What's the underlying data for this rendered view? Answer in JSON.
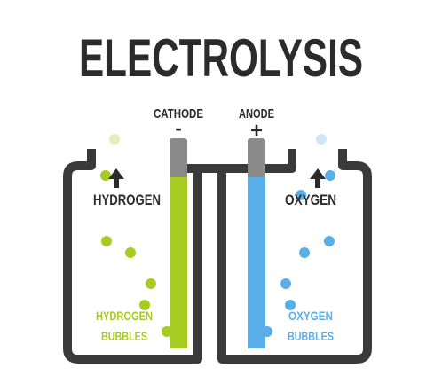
{
  "title": "ELECTROLYSIS",
  "labels": {
    "cathode": "CATHODE",
    "anode": "ANODE",
    "cathode_sign": "-",
    "anode_sign": "+",
    "hydrogen_gas": "HYDROGEN",
    "oxygen_gas": "OXYGEN",
    "hydrogen_bubbles_line1": "HYDROGEN",
    "hydrogen_bubbles_line2": "BUBBLES",
    "oxygen_bubbles_line1": "OXYGEN",
    "oxygen_bubbles_line2": "BUBBLES"
  },
  "colors": {
    "background": "#ffffff",
    "text": "#2b2b2b",
    "container": "#3a3a3a",
    "electrode_cap": "#8a8a8a",
    "cathode": "#a6cc1f",
    "anode": "#5aaee8",
    "hydrogen": "#a6cc1f",
    "oxygen": "#5aaee8"
  }
}
